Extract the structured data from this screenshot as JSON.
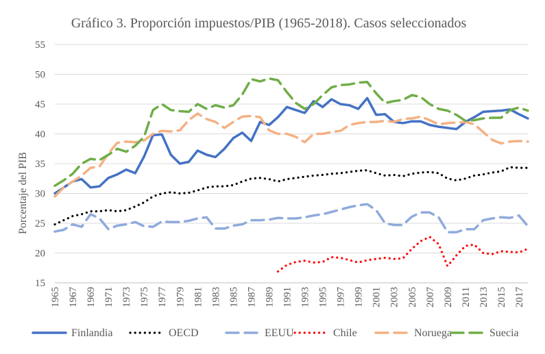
{
  "chart_data": {
    "type": "line",
    "title": "Gráfico 3. Proporción impuestos/PIB (1965-2018). Casos seleccionados",
    "xlabel": "",
    "ylabel": "Porcentaje del PIB",
    "ylim": [
      15,
      55
    ],
    "yticks": [
      "15",
      "20",
      "25",
      "30",
      "35",
      "40",
      "45",
      "50",
      "55"
    ],
    "xlim": [
      1965,
      2018
    ],
    "xticks": [
      "1965",
      "1967",
      "1969",
      "1971",
      "1973",
      "1975",
      "1977",
      "1979",
      "1981",
      "1983",
      "1985",
      "1987",
      "1989",
      "1991",
      "1993",
      "1995",
      "1997",
      "1999",
      "2001",
      "2003",
      "2005",
      "2007",
      "2009",
      "2011",
      "2013",
      "2015",
      "2017"
    ],
    "grid": "horizontal",
    "legend_position": "bottom",
    "series": [
      {
        "name": "Finlandia",
        "color": "#4472c4",
        "dash": "solid",
        "x": [
          1965,
          1966,
          1967,
          1968,
          1969,
          1970,
          1971,
          1972,
          1973,
          1974,
          1975,
          1976,
          1977,
          1978,
          1979,
          1980,
          1981,
          1982,
          1983,
          1984,
          1985,
          1986,
          1987,
          1988,
          1989,
          1990,
          1991,
          1992,
          1993,
          1994,
          1995,
          1996,
          1997,
          1998,
          1999,
          2000,
          2001,
          2002,
          2003,
          2004,
          2005,
          2006,
          2007,
          2008,
          2009,
          2010,
          2011,
          2012,
          2013,
          2014,
          2015,
          2016,
          2017,
          2018
        ],
        "values": [
          30.0,
          31.0,
          32.0,
          32.4,
          31.0,
          31.2,
          32.6,
          33.2,
          34.0,
          33.4,
          36.2,
          39.8,
          39.9,
          36.5,
          35.0,
          35.3,
          37.2,
          36.5,
          36.1,
          37.5,
          39.3,
          40.2,
          38.8,
          42.0,
          41.5,
          42.8,
          44.5,
          44.0,
          43.5,
          45.5,
          44.5,
          45.8,
          45.0,
          44.8,
          44.2,
          46.0,
          43.2,
          43.3,
          42.0,
          41.8,
          42.1,
          42.1,
          41.5,
          41.2,
          41.0,
          40.8,
          42.0,
          42.8,
          43.7,
          43.8,
          43.9,
          44.1,
          43.3,
          42.6
        ]
      },
      {
        "name": "OECD",
        "color": "#000000",
        "dash": "dotted",
        "x": [
          1965,
          1966,
          1967,
          1968,
          1969,
          1970,
          1971,
          1972,
          1973,
          1974,
          1975,
          1976,
          1977,
          1978,
          1979,
          1980,
          1981,
          1982,
          1983,
          1984,
          1985,
          1986,
          1987,
          1988,
          1989,
          1990,
          1991,
          1992,
          1993,
          1994,
          1995,
          1996,
          1997,
          1998,
          1999,
          2000,
          2001,
          2002,
          2003,
          2004,
          2005,
          2006,
          2007,
          2008,
          2009,
          2010,
          2011,
          2012,
          2013,
          2014,
          2015,
          2016,
          2017,
          2018
        ],
        "values": [
          24.8,
          25.5,
          26.2,
          26.5,
          27.0,
          27.0,
          27.2,
          27.0,
          27.2,
          27.8,
          28.5,
          29.5,
          30.0,
          30.2,
          30.0,
          30.1,
          30.5,
          31.0,
          31.2,
          31.2,
          31.4,
          32.0,
          32.5,
          32.6,
          32.4,
          32.0,
          32.4,
          32.6,
          32.8,
          33.0,
          33.1,
          33.3,
          33.4,
          33.6,
          33.8,
          33.9,
          33.4,
          33.0,
          33.1,
          32.9,
          33.3,
          33.5,
          33.6,
          33.4,
          32.5,
          32.2,
          32.5,
          33.0,
          33.2,
          33.5,
          33.7,
          34.4,
          34.3,
          34.3
        ]
      },
      {
        "name": "EEUU",
        "color": "#8faadc",
        "dash": "longdash",
        "x": [
          1965,
          1966,
          1967,
          1968,
          1969,
          1970,
          1971,
          1972,
          1973,
          1974,
          1975,
          1976,
          1977,
          1978,
          1979,
          1980,
          1981,
          1982,
          1983,
          1984,
          1985,
          1986,
          1987,
          1988,
          1989,
          1990,
          1991,
          1992,
          1993,
          1994,
          1995,
          1996,
          1997,
          1998,
          1999,
          2000,
          2001,
          2002,
          2003,
          2004,
          2005,
          2006,
          2007,
          2008,
          2009,
          2010,
          2011,
          2012,
          2013,
          2014,
          2015,
          2016,
          2017,
          2018
        ],
        "values": [
          23.6,
          23.9,
          24.8,
          24.4,
          26.5,
          25.8,
          24.0,
          24.6,
          24.8,
          25.2,
          24.5,
          24.4,
          25.3,
          25.2,
          25.2,
          25.4,
          25.8,
          26.0,
          24.1,
          24.1,
          24.6,
          24.8,
          25.5,
          25.5,
          25.6,
          25.9,
          25.8,
          25.8,
          26.0,
          26.3,
          26.5,
          26.9,
          27.3,
          27.7,
          28.0,
          28.2,
          27.2,
          25.0,
          24.7,
          24.7,
          26.1,
          26.8,
          26.8,
          26.0,
          23.5,
          23.5,
          24.0,
          24.0,
          25.5,
          25.8,
          26.0,
          25.9,
          26.3,
          24.5
        ]
      },
      {
        "name": "Chile",
        "color": "#ff0000",
        "dash": "dotted",
        "x": [
          1990,
          1991,
          1992,
          1993,
          1994,
          1995,
          1996,
          1997,
          1998,
          1999,
          2000,
          2001,
          2002,
          2003,
          2004,
          2005,
          2006,
          2007,
          2008,
          2009,
          2010,
          2011,
          2012,
          2013,
          2014,
          2015,
          2016,
          2017,
          2018
        ],
        "values": [
          16.9,
          18.0,
          18.5,
          18.7,
          18.4,
          18.5,
          19.3,
          19.2,
          18.8,
          18.4,
          18.8,
          19.0,
          19.2,
          19.0,
          19.1,
          20.7,
          22.0,
          22.7,
          21.5,
          17.8,
          19.6,
          21.2,
          21.4,
          20.0,
          19.8,
          20.3,
          20.2,
          20.1,
          20.7
        ]
      },
      {
        "name": "Noruega",
        "color": "#f4b183",
        "dash": "longdash",
        "x": [
          1965,
          1966,
          1967,
          1968,
          1969,
          1970,
          1971,
          1972,
          1973,
          1974,
          1975,
          1976,
          1977,
          1978,
          1979,
          1980,
          1981,
          1982,
          1983,
          1984,
          1985,
          1986,
          1987,
          1988,
          1989,
          1990,
          1991,
          1992,
          1993,
          1994,
          1995,
          1996,
          1997,
          1998,
          1999,
          2000,
          2001,
          2002,
          2003,
          2004,
          2005,
          2006,
          2007,
          2008,
          2009,
          2010,
          2011,
          2012,
          2013,
          2014,
          2015,
          2016,
          2017,
          2018
        ],
        "values": [
          29.5,
          31.0,
          32.0,
          33.0,
          34.3,
          34.5,
          36.7,
          38.5,
          38.7,
          38.6,
          38.9,
          40.0,
          40.5,
          40.4,
          40.6,
          42.3,
          43.4,
          42.5,
          42.0,
          41.0,
          42.0,
          42.9,
          43.0,
          42.8,
          40.6,
          40.0,
          40.0,
          39.5,
          38.6,
          40.0,
          40.0,
          40.3,
          40.5,
          41.5,
          41.8,
          42.0,
          42.0,
          42.2,
          42.0,
          42.5,
          42.6,
          42.9,
          42.3,
          41.6,
          41.8,
          41.9,
          42.0,
          41.6,
          40.3,
          39.0,
          38.4,
          38.7,
          38.8,
          38.7
        ]
      },
      {
        "name": "Suecia",
        "color": "#70ad47",
        "dash": "longdash",
        "x": [
          1965,
          1966,
          1967,
          1968,
          1969,
          1970,
          1971,
          1972,
          1973,
          1974,
          1975,
          1976,
          1977,
          1978,
          1979,
          1980,
          1981,
          1982,
          1983,
          1984,
          1985,
          1986,
          1987,
          1988,
          1989,
          1990,
          1991,
          1992,
          1993,
          1994,
          1995,
          1996,
          1997,
          1998,
          1999,
          2000,
          2001,
          2002,
          2003,
          2004,
          2005,
          2006,
          2007,
          2008,
          2009,
          2010,
          2011,
          2012,
          2013,
          2014,
          2015,
          2016,
          2017,
          2018
        ],
        "values": [
          31.3,
          32.2,
          33.3,
          35.0,
          35.8,
          35.6,
          36.5,
          37.5,
          37.0,
          38.0,
          39.5,
          44.0,
          45.0,
          44.0,
          43.8,
          43.7,
          45.0,
          44.2,
          44.8,
          44.4,
          44.8,
          46.6,
          49.2,
          48.8,
          49.3,
          49.0,
          47.0,
          45.2,
          44.2,
          45.0,
          46.5,
          47.8,
          48.2,
          48.3,
          48.6,
          48.7,
          46.8,
          45.2,
          45.5,
          45.7,
          46.5,
          46.2,
          45.0,
          44.2,
          43.9,
          43.2,
          42.2,
          42.3,
          42.6,
          42.7,
          42.7,
          44.0,
          44.4,
          43.9
        ]
      }
    ]
  }
}
